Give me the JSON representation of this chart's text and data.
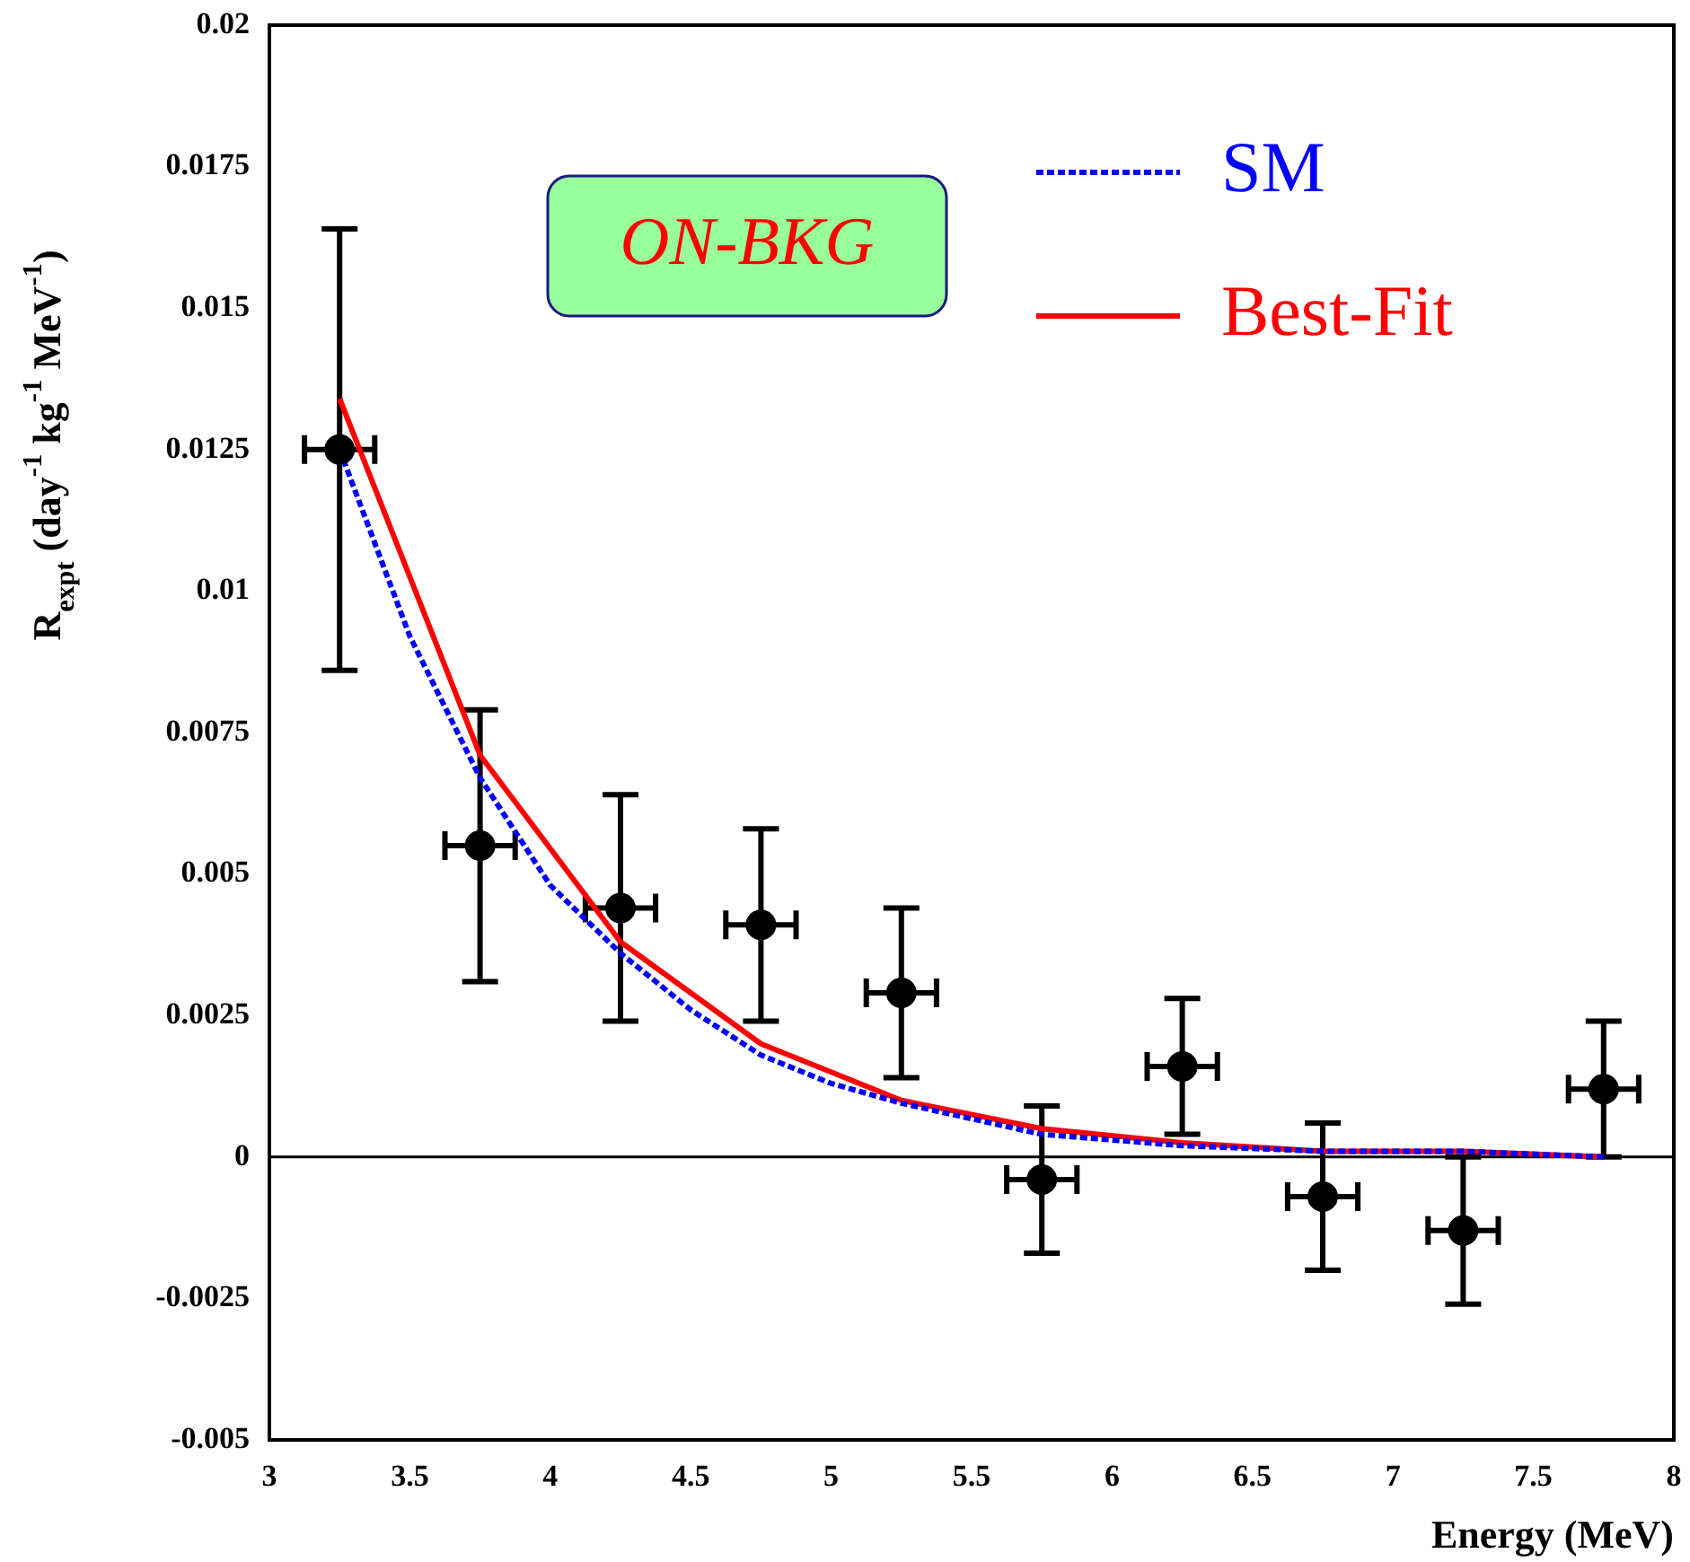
{
  "chart_data": {
    "type": "scatter",
    "xlabel": "Energy (MeV)",
    "ylabel": "R$_{expt}$ (day$^{-1}$ kg$^{-1}$ MeV$^{-1}$)",
    "annotations": [
      "ON-BKG"
    ],
    "xlim": [
      3,
      8
    ],
    "xticks": [
      3,
      3.5,
      4,
      4.5,
      5,
      5.5,
      6,
      6.5,
      7,
      7.5,
      8
    ],
    "ylim": [
      -0.005,
      0.02
    ],
    "yticks": [
      -0.005,
      -0.0025,
      0,
      0.0025,
      0.005,
      0.0075,
      0.01,
      0.0125,
      0.015,
      0.0175,
      0.02
    ],
    "grid": false,
    "legend": "top right",
    "ref_lines": [
      {
        "axis": "y",
        "value": 0,
        "color": "#000000"
      }
    ],
    "series": [
      {
        "color": "#000000",
        "marker": "circle",
        "x": [
          3.25,
          3.75,
          4.25,
          4.75,
          5.25,
          5.75,
          6.25,
          6.75,
          7.25,
          7.75
        ],
        "values": [
          0.0125,
          0.0055,
          0.0044,
          0.0041,
          0.0029,
          -0.0004,
          0.0016,
          -0.0007,
          -0.0013,
          0.0012
        ],
        "errors": [
          0.0039,
          0.0024,
          0.002,
          0.0017,
          0.0015,
          0.0013,
          0.0012,
          0.0013,
          0.0013,
          0.0012
        ],
        "xerrors": [
          0.125,
          0.125,
          0.125,
          0.125,
          0.125,
          0.125,
          0.125,
          0.125,
          0.125,
          0.125
        ]
      },
      {
        "type": "line",
        "name": "SM",
        "color": "#0000ff",
        "line_style": "dotted",
        "marker": "none",
        "x": [
          3.25,
          3.5,
          3.75,
          4.0,
          4.25,
          4.5,
          4.75,
          5.0,
          5.25,
          5.75,
          6.25,
          6.75,
          7.25,
          7.75
        ],
        "values": [
          0.0125,
          0.0092,
          0.0067,
          0.0048,
          0.0036,
          0.0026,
          0.0018,
          0.0013,
          0.00095,
          0.0004,
          0.0002,
          0.0001,
          0.0001,
          0
        ]
      },
      {
        "type": "line",
        "name": "Best-Fit",
        "color": "#ff0000",
        "line_style": "solid",
        "marker": "none",
        "x": [
          3.25,
          3.75,
          4.25,
          4.75,
          5.25,
          5.75,
          6.25,
          6.75,
          7.25,
          7.75
        ],
        "values": [
          0.0134,
          0.0071,
          0.0038,
          0.002,
          0.001,
          0.0005,
          0.00025,
          0.0001,
          0.0001,
          0
        ]
      }
    ]
  }
}
